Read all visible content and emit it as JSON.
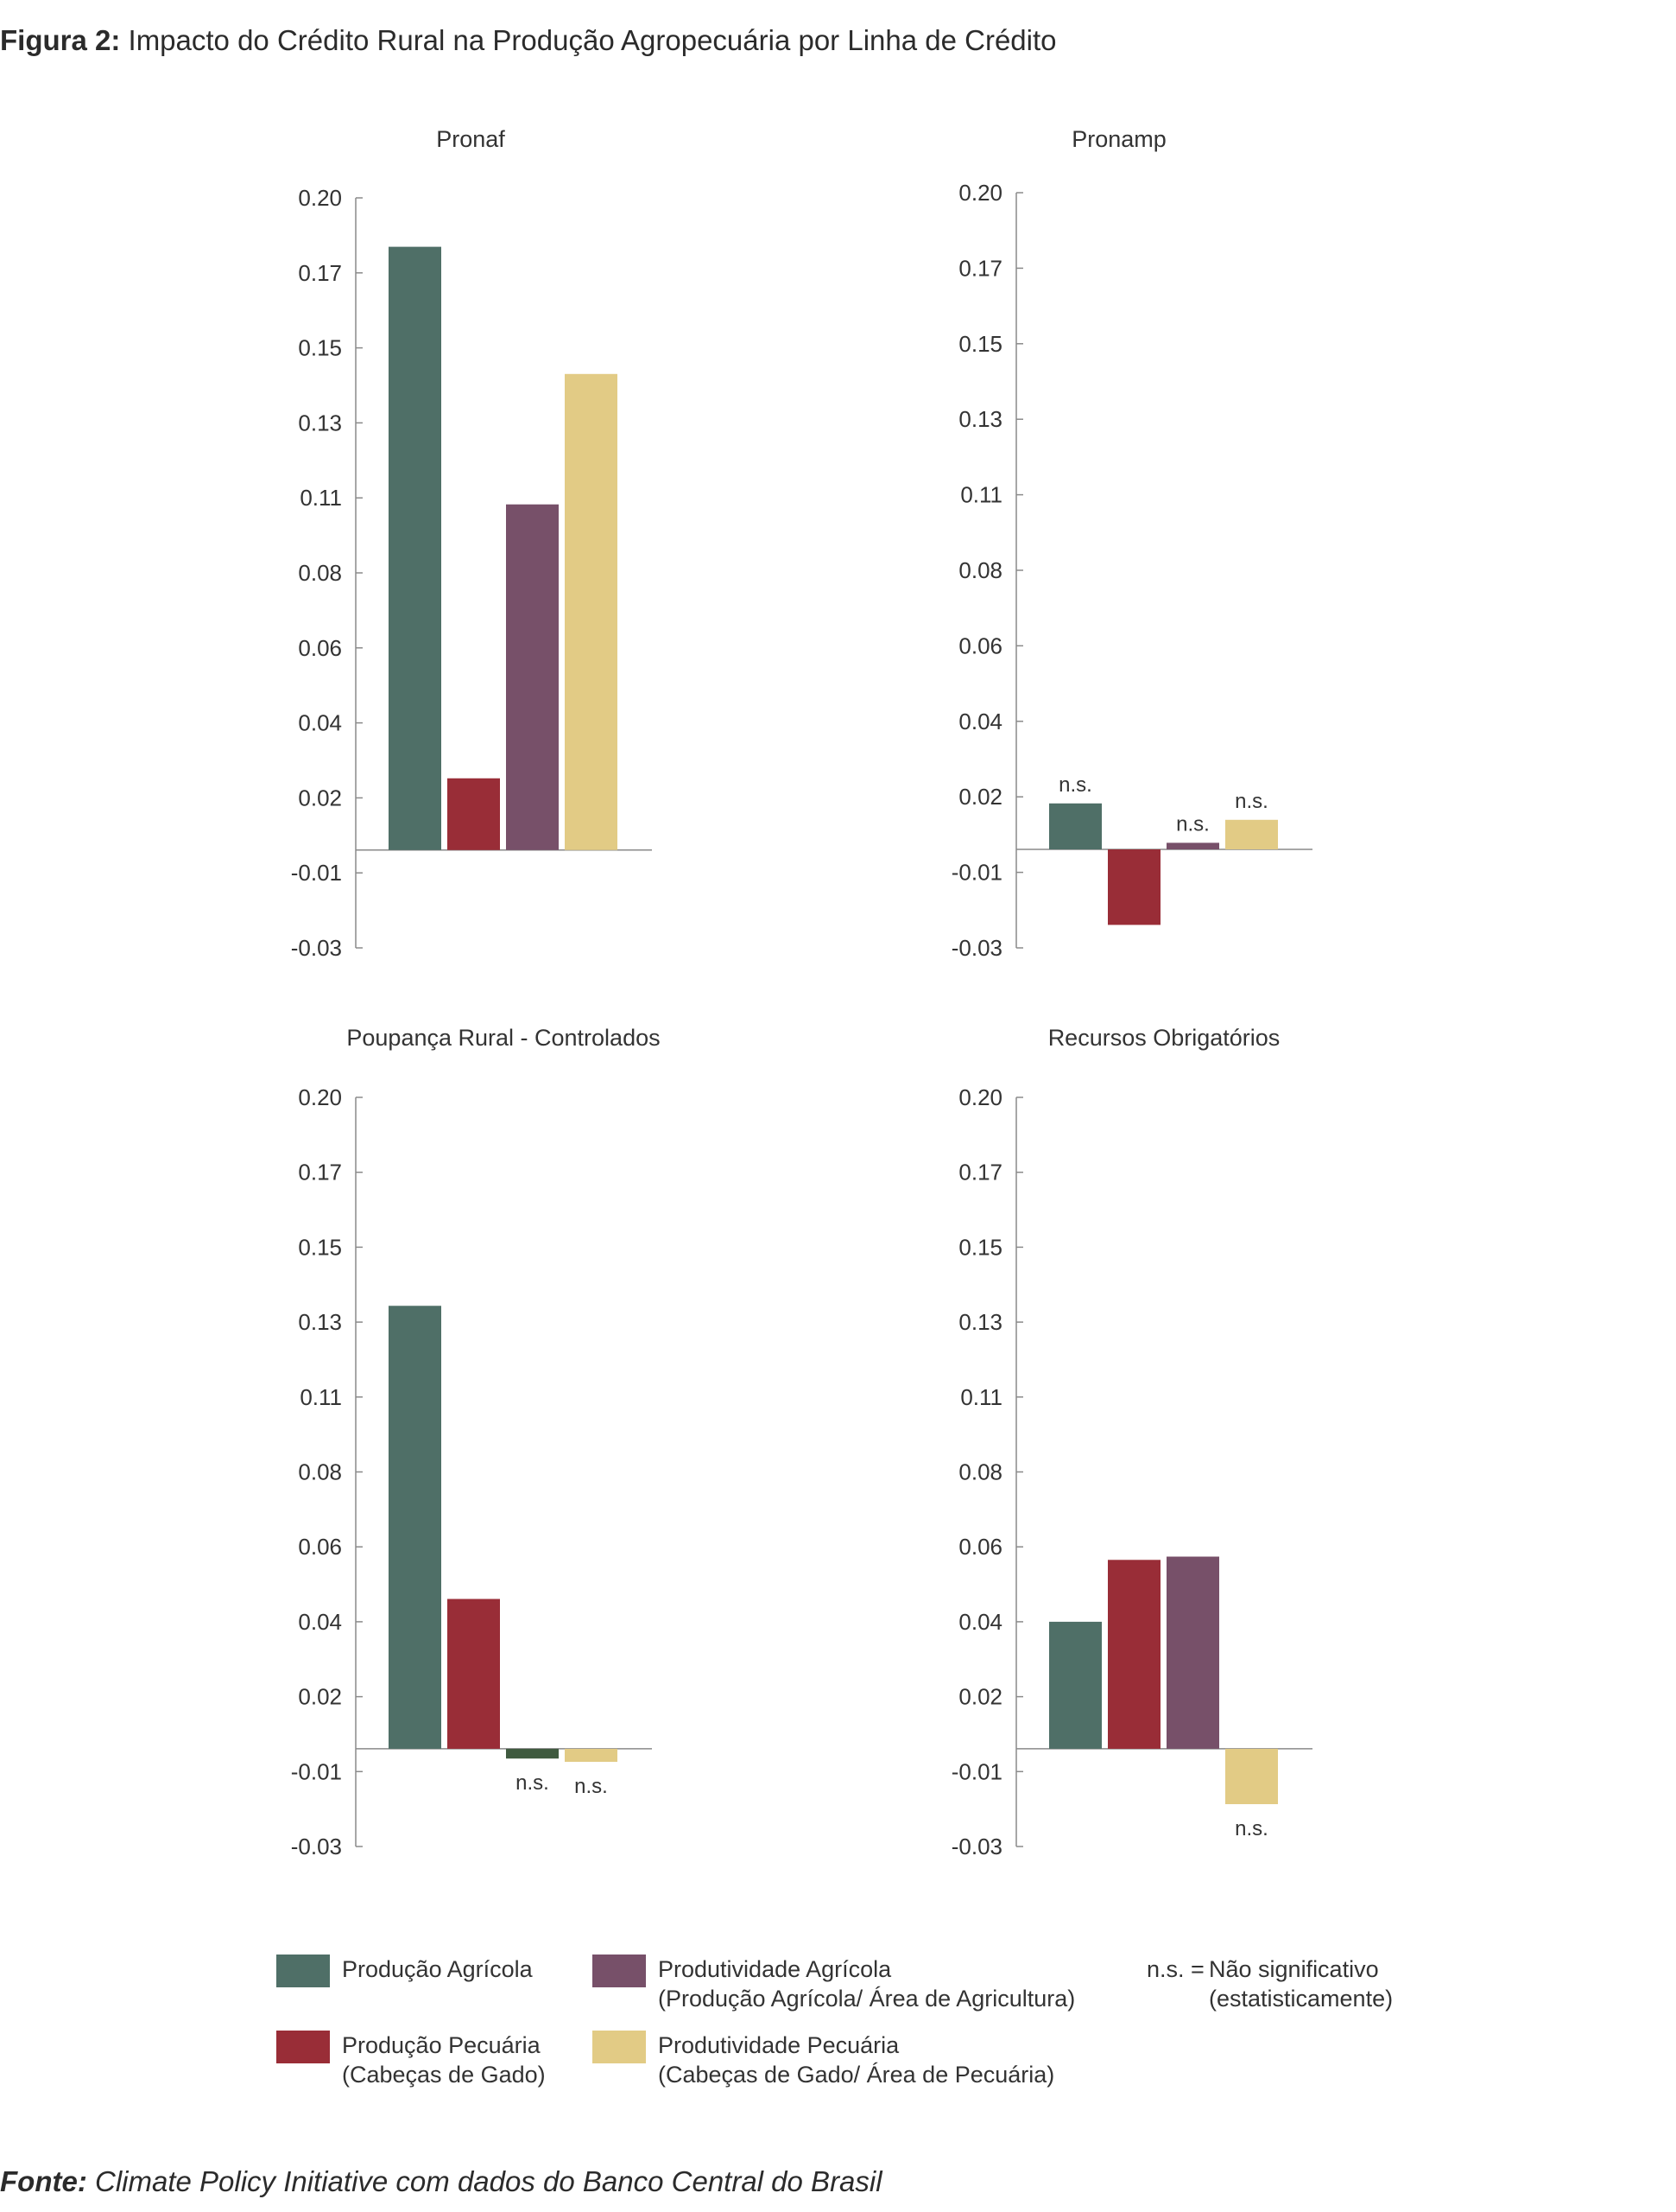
{
  "figure": {
    "title_bold": "Figura 2:",
    "title_text": " Impacto do Crédito Rural na Produção Agropecuária por Linha de Crédito"
  },
  "source": {
    "label": "Fonte:",
    "text": " Climate Policy Initiative com dados do Banco Central do Brasil"
  },
  "colors": {
    "producao_agricola": "#4f6f67",
    "producao_pecuaria": "#992d37",
    "produtividade_agricola": "#775069",
    "produtividade_pecuaria": "#e2cb85",
    "axis": "#8a8a8a"
  },
  "legend": {
    "items": [
      {
        "line1": "Produção Agrícola",
        "line2": ""
      },
      {
        "line1": "Produção Pecuária",
        "line2": "(Cabeças de Gado)"
      },
      {
        "line1": "Produtividade Agrícola",
        "line2": "(Produção Agrícola/ Área de Agricultura)"
      },
      {
        "line1": "Produtividade Pecuária",
        "line2": "(Cabeças de Gado/ Área de Pecuária)"
      }
    ],
    "ns_key": "n.s. =",
    "ns_line1": "Não significativo",
    "ns_line2": "(estatisticamente)"
  },
  "chart_data": [
    {
      "type": "bar",
      "title": "Pronaf",
      "series_names": [
        "Produção Agrícola",
        "Produção Pecuária",
        "Produtividade Agrícola",
        "Produtividade Pecuária"
      ],
      "values": [
        0.185,
        0.022,
        0.106,
        0.146
      ],
      "significance": [
        "",
        "",
        "",
        ""
      ],
      "ytick_labels": [
        "0.20",
        "0.17",
        "0.15",
        "0.13",
        "0.11",
        "0.08",
        "0.06",
        "0.04",
        "0.02",
        "-0.01",
        "-0.03"
      ],
      "ylim": [
        -0.03,
        0.2
      ]
    },
    {
      "type": "bar",
      "title": "Pronamp",
      "series_names": [
        "Produção Agrícola",
        "Produção Pecuária",
        "Produtividade Agrícola",
        "Produtividade Pecuária"
      ],
      "values": [
        0.014,
        -0.023,
        0.002,
        0.009
      ],
      "significance": [
        "n.s.",
        "",
        "n.s.",
        "n.s."
      ],
      "ytick_labels": [
        "0.20",
        "0.17",
        "0.15",
        "0.13",
        "0.11",
        "0.08",
        "0.06",
        "0.04",
        "0.02",
        "-0.01",
        "-0.03"
      ],
      "ylim": [
        -0.03,
        0.2
      ]
    },
    {
      "type": "bar",
      "title": "Poupança Rural - Controlados",
      "series_names": [
        "Produção Agrícola",
        "Produção Pecuária",
        "Produtividade Agrícola",
        "Produtividade Pecuária"
      ],
      "values": [
        0.136,
        0.046,
        -0.003,
        -0.004
      ],
      "significance": [
        "",
        "",
        "n.s.",
        "n.s."
      ],
      "ytick_labels": [
        "0.20",
        "0.17",
        "0.15",
        "0.13",
        "0.11",
        "0.08",
        "0.06",
        "0.04",
        "0.02",
        "-0.01",
        "-0.03"
      ],
      "ylim": [
        -0.03,
        0.2
      ]
    },
    {
      "type": "bar",
      "title": "Recursos Obrigatórios",
      "series_names": [
        "Produção Agrícola",
        "Produção Pecuária",
        "Produtividade Agrícola",
        "Produtividade Pecuária"
      ],
      "values": [
        0.039,
        0.058,
        0.059,
        -0.017
      ],
      "significance": [
        "",
        "",
        "",
        "n.s."
      ],
      "ytick_labels": [
        "0.20",
        "0.17",
        "0.15",
        "0.13",
        "0.11",
        "0.08",
        "0.06",
        "0.04",
        "0.02",
        "-0.01",
        "-0.03"
      ],
      "ylim": [
        -0.03,
        0.2
      ]
    }
  ]
}
